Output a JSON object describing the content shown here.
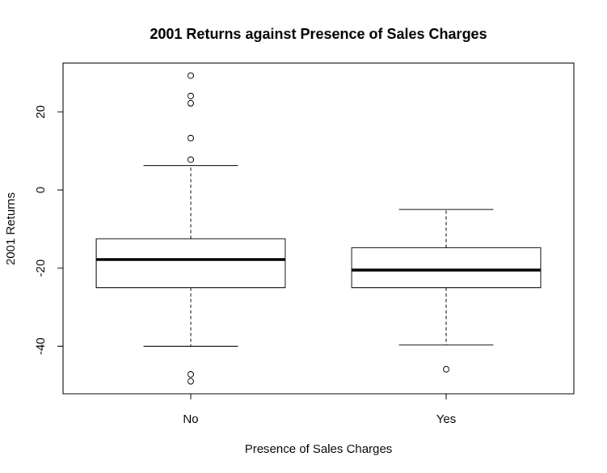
{
  "chart_data": {
    "type": "boxplot",
    "title": "2001 Returns against Presence of Sales Charges",
    "xlabel": "Presence of Sales Charges",
    "ylabel": "2001 Returns",
    "ylim": [
      -52,
      32
    ],
    "yticks": [
      -40,
      -20,
      0,
      20
    ],
    "grid": false,
    "categories": [
      "No",
      "Yes"
    ],
    "series": [
      {
        "category": "No",
        "whisker_low": -40,
        "q1": -25,
        "median": -17.8,
        "q3": -12.5,
        "whisker_high": 6.3,
        "outliers": [
          29.3,
          24.1,
          22.2,
          13.3,
          7.8,
          -47.2,
          -49.0
        ]
      },
      {
        "category": "Yes",
        "whisker_low": -39.7,
        "q1": -25,
        "median": -20.5,
        "q3": -14.8,
        "whisker_high": -5.0,
        "outliers": [
          -45.9
        ]
      }
    ]
  }
}
